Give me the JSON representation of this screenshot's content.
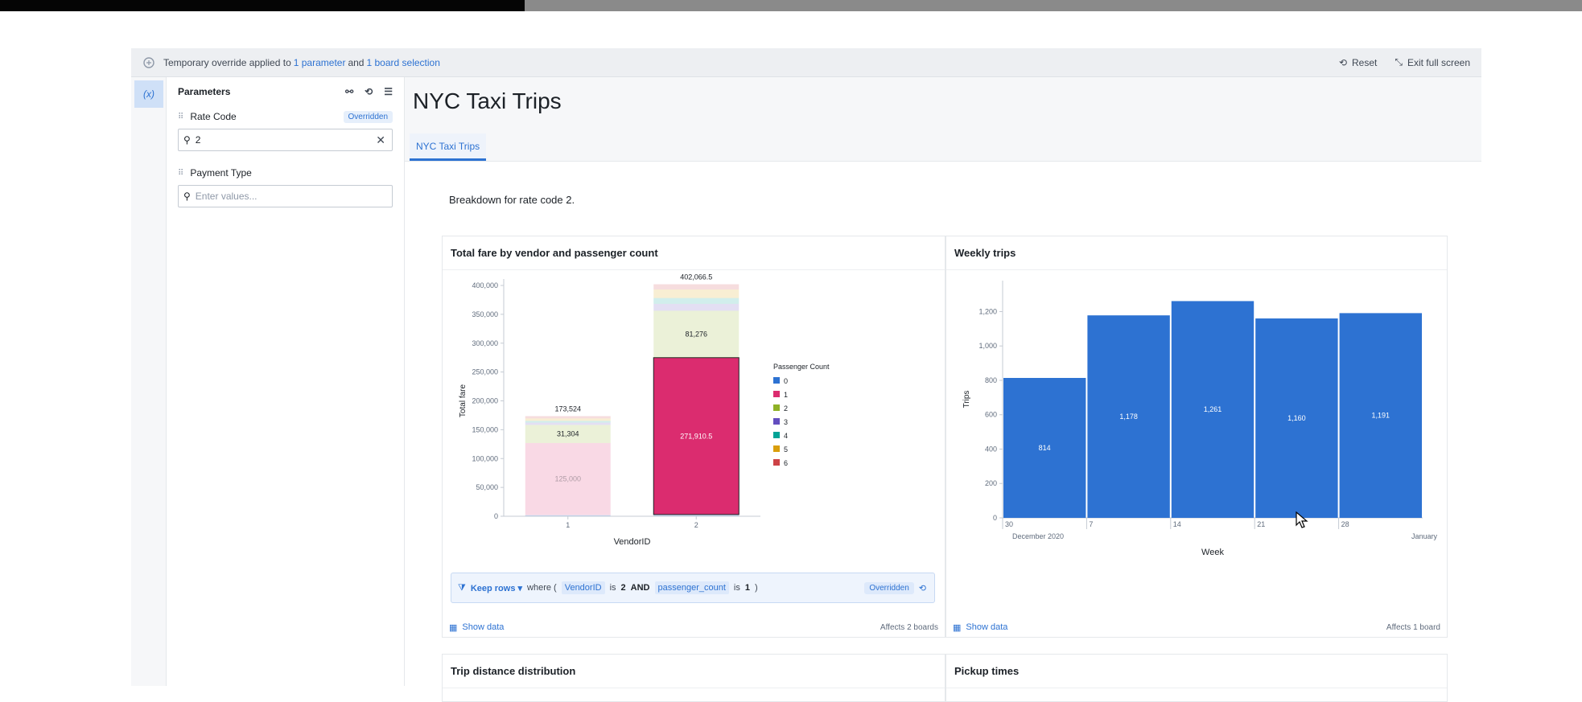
{
  "banner": {
    "prefix": "Temporary override applied to",
    "link1": "1 parameter",
    "middle": "and",
    "link2": "1 board selection",
    "reset": "Reset",
    "exit_fullscreen": "Exit full screen"
  },
  "rail": {
    "variables_label": "(x)"
  },
  "parameters": {
    "title": "Parameters",
    "items": [
      {
        "label": "Rate Code",
        "badge": "Overridden",
        "value": "2",
        "placeholder": ""
      },
      {
        "label": "Payment Type",
        "badge": "",
        "value": "",
        "placeholder": "Enter values..."
      }
    ]
  },
  "header": {
    "title": "NYC Taxi Trips",
    "tab": "NYC Taxi Trips"
  },
  "description": "Breakdown for rate code 2.",
  "cards": {
    "fare": {
      "title": "Total fare by vendor and passenger count",
      "show_data": "Show data",
      "affects": "Affects 2 boards",
      "filter": {
        "action": "Keep rows",
        "where": "where (",
        "col1": "VendorID",
        "op1": "is",
        "val1": "2",
        "and": "AND",
        "col2": "passenger_count",
        "op2": "is",
        "val2": "1",
        "close": ")",
        "badge": "Overridden"
      }
    },
    "weekly": {
      "title": "Weekly trips",
      "show_data": "Show data",
      "affects": "Affects 1 board"
    },
    "distance": {
      "title": "Trip distance distribution"
    },
    "pickup": {
      "title": "Pickup times"
    }
  },
  "chart_data": [
    {
      "type": "bar",
      "stacked": true,
      "title": "Total fare by vendor and passenger count",
      "xlabel": "VendorID",
      "ylabel": "Total fare",
      "categories": [
        "1",
        "2"
      ],
      "ylim": [
        0,
        400000
      ],
      "yticks": [
        0,
        50000,
        100000,
        150000,
        200000,
        250000,
        300000,
        350000,
        400000
      ],
      "ytick_labels": [
        "0",
        "50,000",
        "100,000",
        "150,000",
        "200,000",
        "250,000",
        "300,000",
        "350,000",
        "400,000"
      ],
      "legend_title": "Passenger Count",
      "legend_position": "right",
      "series": [
        {
          "name": "0",
          "color": "#2d72d2",
          "values": [
            2000,
            3000
          ]
        },
        {
          "name": "1",
          "color": "#db2c6f",
          "values": [
            125000,
            271910.5
          ]
        },
        {
          "name": "2",
          "color": "#8eb125",
          "values": [
            31304,
            81276
          ]
        },
        {
          "name": "3",
          "color": "#634dbf",
          "values": [
            4000,
            12000
          ]
        },
        {
          "name": "4",
          "color": "#00a396",
          "values": [
            3000,
            10000
          ]
        },
        {
          "name": "5",
          "color": "#d99e0b",
          "values": [
            4220,
            14880
          ]
        },
        {
          "name": "6",
          "color": "#cd4246",
          "values": [
            4000,
            9000
          ]
        }
      ],
      "highlight": {
        "category": "2",
        "series": "1"
      },
      "totals": [
        173524,
        402066.5
      ],
      "total_labels": [
        "173,524",
        "402,066.5"
      ],
      "segment_labels": [
        {
          "category": "1",
          "series": "1",
          "text": "125,000"
        },
        {
          "category": "1",
          "series": "2",
          "text": "31,304"
        },
        {
          "category": "2",
          "series": "1",
          "text": "271,910.5"
        },
        {
          "category": "2",
          "series": "2",
          "text": "81,276"
        }
      ]
    },
    {
      "type": "bar",
      "title": "Weekly trips",
      "xlabel": "Week",
      "ylabel": "Trips",
      "color": "#2d72d2",
      "categories": [
        "30",
        "7",
        "14",
        "21",
        "28"
      ],
      "x_sublabels": {
        "first": "December 2020",
        "last": "January"
      },
      "values": [
        814,
        1178,
        1261,
        1160,
        1191
      ],
      "value_labels": [
        "814",
        "1,178",
        "1,261",
        "1,160",
        "1,191"
      ],
      "ylim": [
        0,
        1380
      ],
      "yticks": [
        0,
        200,
        400,
        600,
        800,
        1000,
        1200
      ],
      "ytick_labels": [
        "0",
        "200",
        "400",
        "600",
        "800",
        "1,000",
        "1,200"
      ]
    }
  ]
}
